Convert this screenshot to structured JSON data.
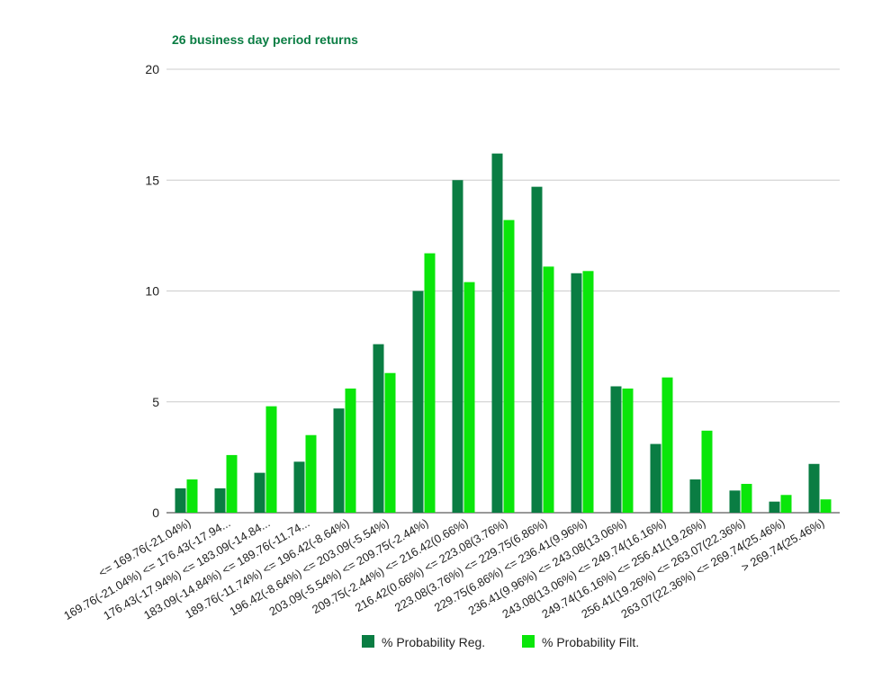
{
  "colors": {
    "reg": "#0a7d43",
    "filt": "#0ae60a",
    "title": "#0a7d43",
    "grid": "#cccccc",
    "axis_text": "#222222"
  },
  "chart_data": {
    "type": "bar",
    "title": "26 business day period returns",
    "xlabel": "",
    "ylabel": "",
    "ylim": [
      0,
      20
    ],
    "yticks": [
      0,
      5,
      10,
      15,
      20
    ],
    "grid": true,
    "legend_position": "bottom",
    "categories": [
      "<= 169.76(-21.04%)",
      "169.76(-21.04%) <= 176.43(-17.94...",
      "176.43(-17.94%) <= 183.09(-14.84...",
      "183.09(-14.84%) <= 189.76(-11.74...",
      "189.76(-11.74%) <= 196.42(-8.64%)",
      "196.42(-8.64%) <= 203.09(-5.54%)",
      "203.09(-5.54%) <= 209.75(-2.44%)",
      "209.75(-2.44%) <= 216.42(0.66%)",
      "216.42(0.66%) <= 223.08(3.76%)",
      "223.08(3.76%) <= 229.75(6.86%)",
      "229.75(6.86%) <= 236.41(9.96%)",
      "236.41(9.96%) <= 243.08(13.06%)",
      "243.08(13.06%) <= 249.74(16.16%)",
      "249.74(16.16%) <= 256.41(19.26%)",
      "256.41(19.26%) <= 263.07(22.36%)",
      "263.07(22.36%) <= 269.74(25.46%)",
      "> 269.74(25.46%)"
    ],
    "series": [
      {
        "name": "% Probability Reg.",
        "values": [
          1.1,
          1.1,
          1.8,
          2.3,
          4.7,
          7.6,
          10.0,
          15.0,
          16.2,
          14.7,
          10.8,
          5.7,
          3.1,
          1.5,
          1.0,
          0.5,
          2.2
        ]
      },
      {
        "name": "% Probability Filt.",
        "values": [
          1.5,
          2.6,
          4.8,
          3.5,
          5.6,
          6.3,
          11.7,
          10.4,
          13.2,
          11.1,
          10.9,
          5.6,
          6.1,
          3.7,
          1.3,
          0.8,
          0.6
        ]
      }
    ]
  }
}
